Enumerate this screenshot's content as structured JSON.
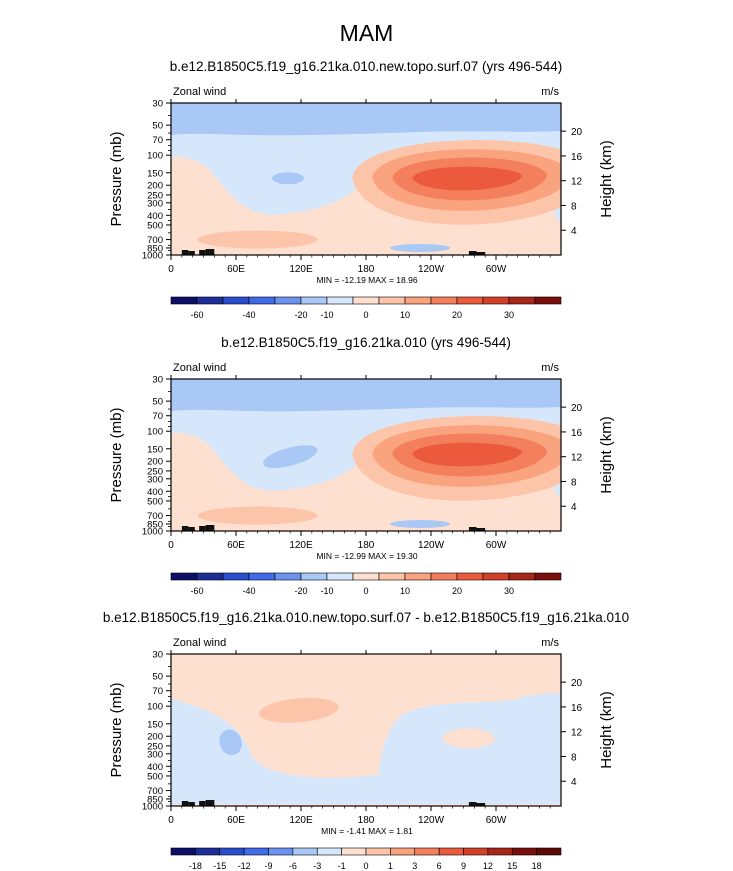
{
  "figure_title": "MAM",
  "chart_data": [
    {
      "type": "heatmap",
      "title": "b.e12.B1850C5.f19_g16.21ka.010.new.topo.surf.07 (yrs 496-544)",
      "left_label": "Zonal wind",
      "units": "m/s",
      "ylabel": "Pressure (mb)",
      "ylabel_right": "Height (km)",
      "x_ticks": [
        "0",
        "60E",
        "120E",
        "180",
        "120W",
        "60W"
      ],
      "x_range_deg": [
        0,
        360
      ],
      "y_ticks": [
        "30",
        "50",
        "70",
        "100",
        "150",
        "200",
        "250",
        "300",
        "400",
        "500",
        "700",
        "850",
        "1000"
      ],
      "y_range_mb": [
        1000,
        30
      ],
      "y_scale": "log",
      "height_ticks_km": [
        "4",
        "8",
        "12",
        "16",
        "20"
      ],
      "stats": "MIN = -12.19   MAX =  18.96",
      "min": -12.19,
      "max": 18.96,
      "colorbar_labels": [
        "-60",
        "-40",
        "-20",
        "-10",
        "0",
        "10",
        "20",
        "30"
      ],
      "features": [
        {
          "kind": "jet-core",
          "lon": [
            150,
            340
          ],
          "p_mb": [
            100,
            350
          ],
          "peak": 18.96
        },
        {
          "kind": "easterly-top",
          "lon": [
            0,
            360
          ],
          "p_mb": [
            30,
            70
          ]
        },
        {
          "kind": "easterly-patch",
          "lon": [
            98,
            118
          ],
          "p_mb": [
            140,
            200
          ]
        },
        {
          "kind": "easterly-patch",
          "lon": [
            200,
            260
          ],
          "p_mb": [
            780,
            900
          ]
        }
      ]
    },
    {
      "type": "heatmap",
      "title": "b.e12.B1850C5.f19_g16.21ka.010 (yrs 496-544)",
      "left_label": "Zonal wind",
      "units": "m/s",
      "ylabel": "Pressure (mb)",
      "ylabel_right": "Height (km)",
      "x_ticks": [
        "0",
        "60E",
        "120E",
        "180",
        "120W",
        "60W"
      ],
      "x_range_deg": [
        0,
        360
      ],
      "y_ticks": [
        "30",
        "50",
        "70",
        "100",
        "150",
        "200",
        "250",
        "300",
        "400",
        "500",
        "700",
        "850",
        "1000"
      ],
      "y_range_mb": [
        1000,
        30
      ],
      "y_scale": "log",
      "height_ticks_km": [
        "4",
        "8",
        "12",
        "16",
        "20"
      ],
      "stats": "MIN = -12.99   MAX =  19.30",
      "min": -12.99,
      "max": 19.3,
      "colorbar_labels": [
        "-60",
        "-40",
        "-20",
        "-10",
        "0",
        "10",
        "20",
        "30"
      ],
      "features": [
        {
          "kind": "jet-core",
          "lon": [
            150,
            340
          ],
          "p_mb": [
            100,
            350
          ],
          "peak": 19.3
        },
        {
          "kind": "easterly-top",
          "lon": [
            0,
            360
          ],
          "p_mb": [
            30,
            70
          ]
        },
        {
          "kind": "easterly-patch",
          "lon": [
            80,
            140
          ],
          "p_mb": [
            110,
            220
          ]
        },
        {
          "kind": "easterly-patch",
          "lon": [
            200,
            260
          ],
          "p_mb": [
            780,
            900
          ]
        }
      ]
    },
    {
      "type": "heatmap",
      "title": "b.e12.B1850C5.f19_g16.21ka.010.new.topo.surf.07 - b.e12.B1850C5.f19_g16.21ka.010",
      "left_label": "Zonal wind",
      "units": "m/s",
      "ylabel": "Pressure (mb)",
      "ylabel_right": "Height (km)",
      "x_ticks": [
        "0",
        "60E",
        "120E",
        "180",
        "120W",
        "60W"
      ],
      "x_range_deg": [
        0,
        360
      ],
      "y_ticks": [
        "30",
        "50",
        "70",
        "100",
        "150",
        "200",
        "250",
        "300",
        "400",
        "500",
        "700",
        "850",
        "1000"
      ],
      "y_range_mb": [
        1000,
        30
      ],
      "y_scale": "log",
      "height_ticks_km": [
        "4",
        "8",
        "12",
        "16",
        "20"
      ],
      "stats": "MIN = -1.41   MAX =  1.81",
      "min": -1.41,
      "max": 1.81,
      "colorbar_labels": [
        "-18",
        "-15",
        "-12",
        "-9",
        "-6",
        "-3",
        "-1",
        "0",
        "1",
        "3",
        "6",
        "9",
        "12",
        "15",
        "18"
      ],
      "features": [
        {
          "kind": "negative-patch",
          "lon": [
            40,
            70
          ],
          "p_mb": [
            180,
            300
          ]
        },
        {
          "kind": "positive-patch",
          "lon": [
            85,
            150
          ],
          "p_mb": [
            90,
            150
          ]
        },
        {
          "kind": "negative-region",
          "lon": [
            190,
            330
          ],
          "p_mb": [
            100,
            900
          ]
        }
      ]
    }
  ],
  "colors": {
    "pos1": "#fde0cf",
    "pos2": "#fcc5aa",
    "pos3": "#f9a37f",
    "pos4": "#f47f5c",
    "pos5": "#ec5a3e",
    "neg1": "#d6e7fb",
    "neg2": "#a9c8f6",
    "dark": "#111111"
  },
  "colorbar_palette_main": [
    "#0b0f66",
    "#1c2d98",
    "#2a4dd0",
    "#3f6be8",
    "#6c93ef",
    "#a9c8f6",
    "#d6e7fb",
    "#fde0cf",
    "#fcc5aa",
    "#f9a37f",
    "#f47f5c",
    "#ec5a3e",
    "#d3402a",
    "#a82519",
    "#7a0e0b"
  ],
  "colorbar_palette_diff": [
    "#0b0f66",
    "#1c2d98",
    "#2a4dd0",
    "#3f6be8",
    "#6c93ef",
    "#a9c8f6",
    "#d6e7fb",
    "#fde0cf",
    "#fcc5aa",
    "#f9a37f",
    "#f47f5c",
    "#ec5a3e",
    "#d3402a",
    "#a82519",
    "#7a0e0b",
    "#5c0808"
  ]
}
